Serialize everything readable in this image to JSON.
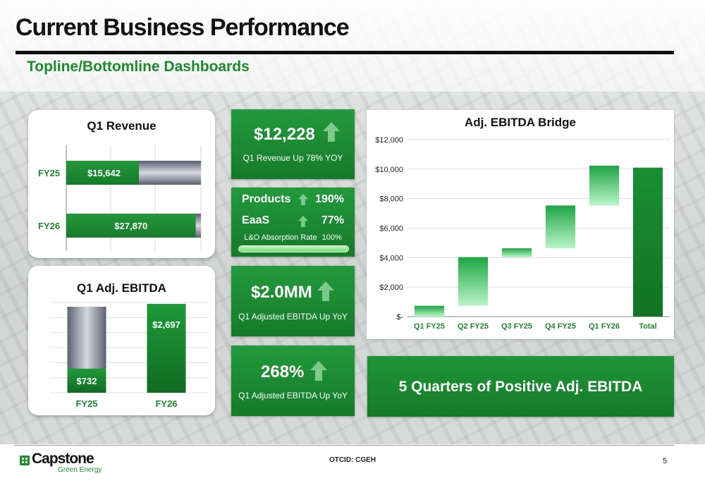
{
  "header": {
    "title": "Current Business Performance",
    "subtitle": "Topline/Bottomline Dashboards"
  },
  "kpis": {
    "revenue": {
      "value": "$12,228",
      "caption": "Q1 Revenue Up 78% YOY"
    },
    "products": {
      "label": "Products",
      "value": "190%"
    },
    "eaas": {
      "label": "EaaS",
      "value": "77%"
    },
    "absorption": {
      "label": "L&O Absorption Rate",
      "value": "100%",
      "fill_percent": 100
    },
    "ebitda": {
      "value": "$2.0MM",
      "caption": "Q1 Adjusted EBITDA Up YoY"
    },
    "pct": {
      "value": "268%",
      "caption": "Q1 Adjusted EBITDA Up YoY"
    }
  },
  "banner": "5 Quarters of Positive Adj. EBITDA",
  "footer": {
    "ticker": "OTCID: CGEH",
    "page": "5",
    "logo_text": "Capstone",
    "logo_sub": "Green Energy"
  },
  "colors": {
    "green": "#1e8a2e",
    "light_green": "#3fd16a",
    "gray_bar": "#7d8390"
  },
  "chart_data": [
    {
      "type": "bar",
      "orientation": "horizontal",
      "title": "Q1 Revenue",
      "categories": [
        "FY25",
        "FY26"
      ],
      "values": [
        15642,
        27870
      ],
      "labels": [
        "$15,642",
        "$27,870"
      ],
      "total_reference": 29000
    },
    {
      "type": "bar",
      "title": "Q1 Adj. EBITDA",
      "categories": [
        "FY25",
        "FY26"
      ],
      "values": [
        732,
        2697
      ],
      "labels": [
        "$732",
        "$2,697"
      ],
      "total_reference": 2697
    },
    {
      "type": "bar",
      "subtype": "waterfall",
      "title": "Adj. EBITDA Bridge",
      "categories": [
        "Q1 FY25",
        "Q2 FY25",
        "Q3 FY25",
        "Q4 FY25",
        "Q1 FY26",
        "Total"
      ],
      "values": [
        732,
        3300,
        600,
        2900,
        2700,
        10100
      ],
      "ylim": [
        0,
        12000
      ],
      "yticks": [
        "$-",
        "$2,000",
        "$4,000",
        "$6,000",
        "$8,000",
        "$10,000",
        "$12,000"
      ],
      "grid": true
    }
  ]
}
